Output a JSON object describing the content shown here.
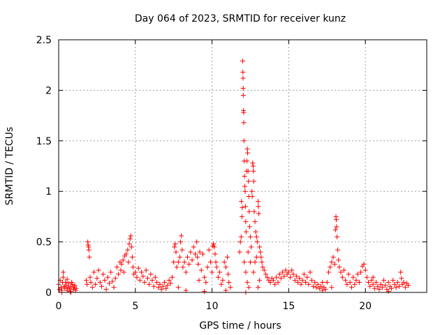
{
  "chart_data": {
    "type": "scatter",
    "title": "Day 064 of 2023, SRMTID for receiver kunz",
    "xlabel": "GPS time / hours",
    "ylabel": "SRMTID / TECUs",
    "xlim": [
      0,
      24
    ],
    "ylim": [
      0,
      2.5
    ],
    "x_ticks": [
      0,
      5,
      10,
      15,
      20
    ],
    "x_tick_labels": [
      "0",
      "5",
      "10",
      "15",
      "20"
    ],
    "y_ticks": [
      0,
      0.5,
      1,
      1.5,
      2,
      2.5
    ],
    "y_tick_labels": [
      "0",
      "0.5",
      "1",
      "1.5",
      "2",
      "2.5"
    ],
    "grid": true,
    "marker": "+",
    "marker_color": "#ff0000",
    "series": [
      {
        "name": "SRMTID",
        "points": [
          [
            0.0,
            0.08
          ],
          [
            0.05,
            0.03
          ],
          [
            0.1,
            0.12
          ],
          [
            0.15,
            0.05
          ],
          [
            0.2,
            0.02
          ],
          [
            0.25,
            0.1
          ],
          [
            0.3,
            0.2
          ],
          [
            0.35,
            0.06
          ],
          [
            0.4,
            0.04
          ],
          [
            0.45,
            0.1
          ],
          [
            0.5,
            0.07
          ],
          [
            0.55,
            0.02
          ],
          [
            0.6,
            0.05
          ],
          [
            0.65,
            0.09
          ],
          [
            0.7,
            0.04
          ],
          [
            0.75,
            0.01
          ],
          [
            0.8,
            0.06
          ],
          [
            0.85,
            0.1
          ],
          [
            0.9,
            0.08
          ],
          [
            0.95,
            0.03
          ],
          [
            1.0,
            0.05
          ],
          [
            1.05,
            0.07
          ],
          [
            1.1,
            0.02
          ],
          [
            1.15,
            0.04
          ],
          [
            0.3,
            0.15
          ],
          [
            0.55,
            0.13
          ],
          [
            0.2,
            0.0
          ],
          [
            0.8,
            0.0
          ],
          [
            1.9,
            0.5
          ],
          [
            1.92,
            0.47
          ],
          [
            1.95,
            0.45
          ],
          [
            1.97,
            0.42
          ],
          [
            2.0,
            0.35
          ],
          [
            1.8,
            0.12
          ],
          [
            1.85,
            0.08
          ],
          [
            2.05,
            0.15
          ],
          [
            2.1,
            0.1
          ],
          [
            2.2,
            0.05
          ],
          [
            2.3,
            0.2
          ],
          [
            2.4,
            0.08
          ],
          [
            2.5,
            0.14
          ],
          [
            2.6,
            0.22
          ],
          [
            2.7,
            0.1
          ],
          [
            2.8,
            0.06
          ],
          [
            2.9,
            0.18
          ],
          [
            3.0,
            0.12
          ],
          [
            3.1,
            0.03
          ],
          [
            3.2,
            0.15
          ],
          [
            3.3,
            0.09
          ],
          [
            3.4,
            0.2
          ],
          [
            3.5,
            0.11
          ],
          [
            3.6,
            0.05
          ],
          [
            3.7,
            0.14
          ],
          [
            3.8,
            0.25
          ],
          [
            3.9,
            0.18
          ],
          [
            4.0,
            0.3
          ],
          [
            4.05,
            0.22
          ],
          [
            4.1,
            0.28
          ],
          [
            4.2,
            0.32
          ],
          [
            4.25,
            0.2
          ],
          [
            4.3,
            0.36
          ],
          [
            4.4,
            0.38
          ],
          [
            4.5,
            0.42
          ],
          [
            4.55,
            0.3
          ],
          [
            4.6,
            0.48
          ],
          [
            4.65,
            0.53
          ],
          [
            4.7,
            0.56
          ],
          [
            4.75,
            0.45
          ],
          [
            4.8,
            0.35
          ],
          [
            4.85,
            0.25
          ],
          [
            4.9,
            0.18
          ],
          [
            5.0,
            0.2
          ],
          [
            5.1,
            0.15
          ],
          [
            5.2,
            0.24
          ],
          [
            5.3,
            0.12
          ],
          [
            5.4,
            0.2
          ],
          [
            5.5,
            0.16
          ],
          [
            5.6,
            0.1
          ],
          [
            5.7,
            0.22
          ],
          [
            5.8,
            0.14
          ],
          [
            5.9,
            0.08
          ],
          [
            6.0,
            0.18
          ],
          [
            6.1,
            0.12
          ],
          [
            6.2,
            0.06
          ],
          [
            6.3,
            0.15
          ],
          [
            6.4,
            0.1
          ],
          [
            6.5,
            0.05
          ],
          [
            6.6,
            0.08
          ],
          [
            6.7,
            0.03
          ],
          [
            6.8,
            0.06
          ],
          [
            6.9,
            0.1
          ],
          [
            7.0,
            0.04
          ],
          [
            7.1,
            0.07
          ],
          [
            7.2,
            0.12
          ],
          [
            7.3,
            0.09
          ],
          [
            7.4,
            0.15
          ],
          [
            7.5,
            0.3
          ],
          [
            7.55,
            0.45
          ],
          [
            7.6,
            0.48
          ],
          [
            7.65,
            0.4
          ],
          [
            7.7,
            0.25
          ],
          [
            7.8,
            0.3
          ],
          [
            7.9,
            0.35
          ],
          [
            7.95,
            0.5
          ],
          [
            8.0,
            0.56
          ],
          [
            8.05,
            0.42
          ],
          [
            8.1,
            0.25
          ],
          [
            8.2,
            0.3
          ],
          [
            8.3,
            0.2
          ],
          [
            8.4,
            0.35
          ],
          [
            8.5,
            0.28
          ],
          [
            8.6,
            0.4
          ],
          [
            8.7,
            0.32
          ],
          [
            8.8,
            0.45
          ],
          [
            8.9,
            0.38
          ],
          [
            9.0,
            0.5
          ],
          [
            9.05,
            0.35
          ],
          [
            9.1,
            0.28
          ],
          [
            9.2,
            0.4
          ],
          [
            9.3,
            0.22
          ],
          [
            9.4,
            0.38
          ],
          [
            9.5,
            0.15
          ],
          [
            9.6,
            0.1
          ],
          [
            9.7,
            0.25
          ],
          [
            9.8,
            0.42
          ],
          [
            9.9,
            0.3
          ],
          [
            10.0,
            0.2
          ],
          [
            10.05,
            0.46
          ],
          [
            10.1,
            0.48
          ],
          [
            10.15,
            0.45
          ],
          [
            10.2,
            0.38
          ],
          [
            10.3,
            0.25
          ],
          [
            10.4,
            0.15
          ],
          [
            10.5,
            0.2
          ],
          [
            10.6,
            0.08
          ],
          [
            10.7,
            0.12
          ],
          [
            10.8,
            0.3
          ],
          [
            10.9,
            0.25
          ],
          [
            11.0,
            0.35
          ],
          [
            11.05,
            0.18
          ],
          [
            11.1,
            0.1
          ],
          [
            11.2,
            0.05
          ],
          [
            8.3,
            0.02
          ],
          [
            9.5,
            0.01
          ],
          [
            10.9,
            0.02
          ],
          [
            7.8,
            0.05
          ],
          [
            9.15,
            0.12
          ],
          [
            10.25,
            0.3
          ],
          [
            11.8,
            0.4
          ],
          [
            11.85,
            0.5
          ],
          [
            11.9,
            0.55
          ],
          [
            11.92,
            0.9
          ],
          [
            11.95,
            0.75
          ],
          [
            11.97,
            0.84
          ],
          [
            12.0,
            2.29
          ],
          [
            12.01,
            2.18
          ],
          [
            12.02,
            2.12
          ],
          [
            12.03,
            2.02
          ],
          [
            12.04,
            1.95
          ],
          [
            12.05,
            1.8
          ],
          [
            12.06,
            1.78
          ],
          [
            12.07,
            1.68
          ],
          [
            12.08,
            1.5
          ],
          [
            12.1,
            1.3
          ],
          [
            12.12,
            1.15
          ],
          [
            12.14,
            1.05
          ],
          [
            12.16,
            1.0
          ],
          [
            12.18,
            0.85
          ],
          [
            12.2,
            0.7
          ],
          [
            12.22,
            0.6
          ],
          [
            12.25,
            1.2
          ],
          [
            12.28,
            1.3
          ],
          [
            12.3,
            1.42
          ],
          [
            12.32,
            1.38
          ],
          [
            12.35,
            1.2
          ],
          [
            12.38,
            1.1
          ],
          [
            12.4,
            0.95
          ],
          [
            12.42,
            0.8
          ],
          [
            12.45,
            0.65
          ],
          [
            12.5,
            0.55
          ],
          [
            12.55,
            0.45
          ],
          [
            12.6,
            1.0
          ],
          [
            12.62,
            0.95
          ],
          [
            12.65,
            1.28
          ],
          [
            12.68,
            1.25
          ],
          [
            12.7,
            1.2
          ],
          [
            12.72,
            1.1
          ],
          [
            12.75,
            0.8
          ],
          [
            12.8,
            0.7
          ],
          [
            12.85,
            0.6
          ],
          [
            12.9,
            0.55
          ],
          [
            12.95,
            0.5
          ],
          [
            13.0,
            0.9
          ],
          [
            13.02,
            0.85
          ],
          [
            13.05,
            0.78
          ],
          [
            13.1,
            0.45
          ],
          [
            13.15,
            0.4
          ],
          [
            13.2,
            0.35
          ],
          [
            13.25,
            0.3
          ],
          [
            13.3,
            0.25
          ],
          [
            13.4,
            0.22
          ],
          [
            13.5,
            0.18
          ],
          [
            13.6,
            0.15
          ],
          [
            13.7,
            0.12
          ],
          [
            13.8,
            0.1
          ],
          [
            13.9,
            0.14
          ],
          [
            12.1,
            0.3
          ],
          [
            12.2,
            0.2
          ],
          [
            12.3,
            0.1
          ],
          [
            12.35,
            0.4
          ],
          [
            12.5,
            0.3
          ],
          [
            12.7,
            0.2
          ],
          [
            12.9,
            0.35
          ],
          [
            13.0,
            0.05
          ],
          [
            12.2,
            0.0
          ],
          [
            12.4,
            0.05
          ],
          [
            12.8,
            0.3
          ],
          [
            13.1,
            0.12
          ],
          [
            14.0,
            0.12
          ],
          [
            14.1,
            0.08
          ],
          [
            14.2,
            0.15
          ],
          [
            14.3,
            0.1
          ],
          [
            14.4,
            0.18
          ],
          [
            14.5,
            0.14
          ],
          [
            14.6,
            0.2
          ],
          [
            14.7,
            0.16
          ],
          [
            14.8,
            0.22
          ],
          [
            14.9,
            0.18
          ],
          [
            15.0,
            0.2
          ],
          [
            15.1,
            0.15
          ],
          [
            15.2,
            0.22
          ],
          [
            15.3,
            0.18
          ],
          [
            15.4,
            0.12
          ],
          [
            15.5,
            0.16
          ],
          [
            15.6,
            0.1
          ],
          [
            15.7,
            0.14
          ],
          [
            15.8,
            0.08
          ],
          [
            15.9,
            0.12
          ],
          [
            16.0,
            0.18
          ],
          [
            16.1,
            0.1
          ],
          [
            16.2,
            0.15
          ],
          [
            16.3,
            0.08
          ],
          [
            16.4,
            0.2
          ],
          [
            16.5,
            0.12
          ],
          [
            16.6,
            0.06
          ],
          [
            16.7,
            0.1
          ],
          [
            16.8,
            0.05
          ],
          [
            16.9,
            0.08
          ],
          [
            17.0,
            0.04
          ],
          [
            17.1,
            0.06
          ],
          [
            17.2,
            0.02
          ],
          [
            17.3,
            0.05
          ],
          [
            17.4,
            0.03
          ],
          [
            17.5,
            0.1
          ],
          [
            17.6,
            0.2
          ],
          [
            17.7,
            0.25
          ],
          [
            17.8,
            0.3
          ],
          [
            17.9,
            0.35
          ],
          [
            18.0,
            0.28
          ],
          [
            18.05,
            0.62
          ],
          [
            18.08,
            0.75
          ],
          [
            18.1,
            0.72
          ],
          [
            18.12,
            0.65
          ],
          [
            18.15,
            0.55
          ],
          [
            18.2,
            0.42
          ],
          [
            18.25,
            0.32
          ],
          [
            18.3,
            0.25
          ],
          [
            18.4,
            0.2
          ],
          [
            18.5,
            0.15
          ],
          [
            18.6,
            0.22
          ],
          [
            18.7,
            0.12
          ],
          [
            18.8,
            0.08
          ],
          [
            18.9,
            0.18
          ],
          [
            19.0,
            0.1
          ],
          [
            19.1,
            0.05
          ],
          [
            19.2,
            0.15
          ],
          [
            19.3,
            0.08
          ],
          [
            19.4,
            0.12
          ],
          [
            19.5,
            0.18
          ],
          [
            19.6,
            0.1
          ],
          [
            19.7,
            0.2
          ],
          [
            19.8,
            0.26
          ],
          [
            19.9,
            0.28
          ],
          [
            20.0,
            0.22
          ],
          [
            20.1,
            0.15
          ],
          [
            20.2,
            0.1
          ],
          [
            20.3,
            0.06
          ],
          [
            20.4,
            0.12
          ],
          [
            20.5,
            0.08
          ],
          [
            20.6,
            0.04
          ],
          [
            20.7,
            0.1
          ],
          [
            20.8,
            0.06
          ],
          [
            20.9,
            0.03
          ],
          [
            21.0,
            0.08
          ],
          [
            21.1,
            0.05
          ],
          [
            21.2,
            0.12
          ],
          [
            21.3,
            0.07
          ],
          [
            21.4,
            0.03
          ],
          [
            21.5,
            0.1
          ],
          [
            21.6,
            0.06
          ],
          [
            21.7,
            0.04
          ],
          [
            21.8,
            0.12
          ],
          [
            21.9,
            0.08
          ],
          [
            22.0,
            0.05
          ],
          [
            22.1,
            0.1
          ],
          [
            22.2,
            0.06
          ],
          [
            22.3,
            0.2
          ],
          [
            22.35,
            0.14
          ],
          [
            22.4,
            0.08
          ],
          [
            22.5,
            0.1
          ],
          [
            22.6,
            0.05
          ],
          [
            22.7,
            0.09
          ],
          [
            22.8,
            0.07
          ],
          [
            17.2,
            0.1
          ],
          [
            17.8,
            0.05
          ],
          [
            20.5,
            0.15
          ],
          [
            21.5,
            0.01
          ]
        ]
      }
    ]
  }
}
